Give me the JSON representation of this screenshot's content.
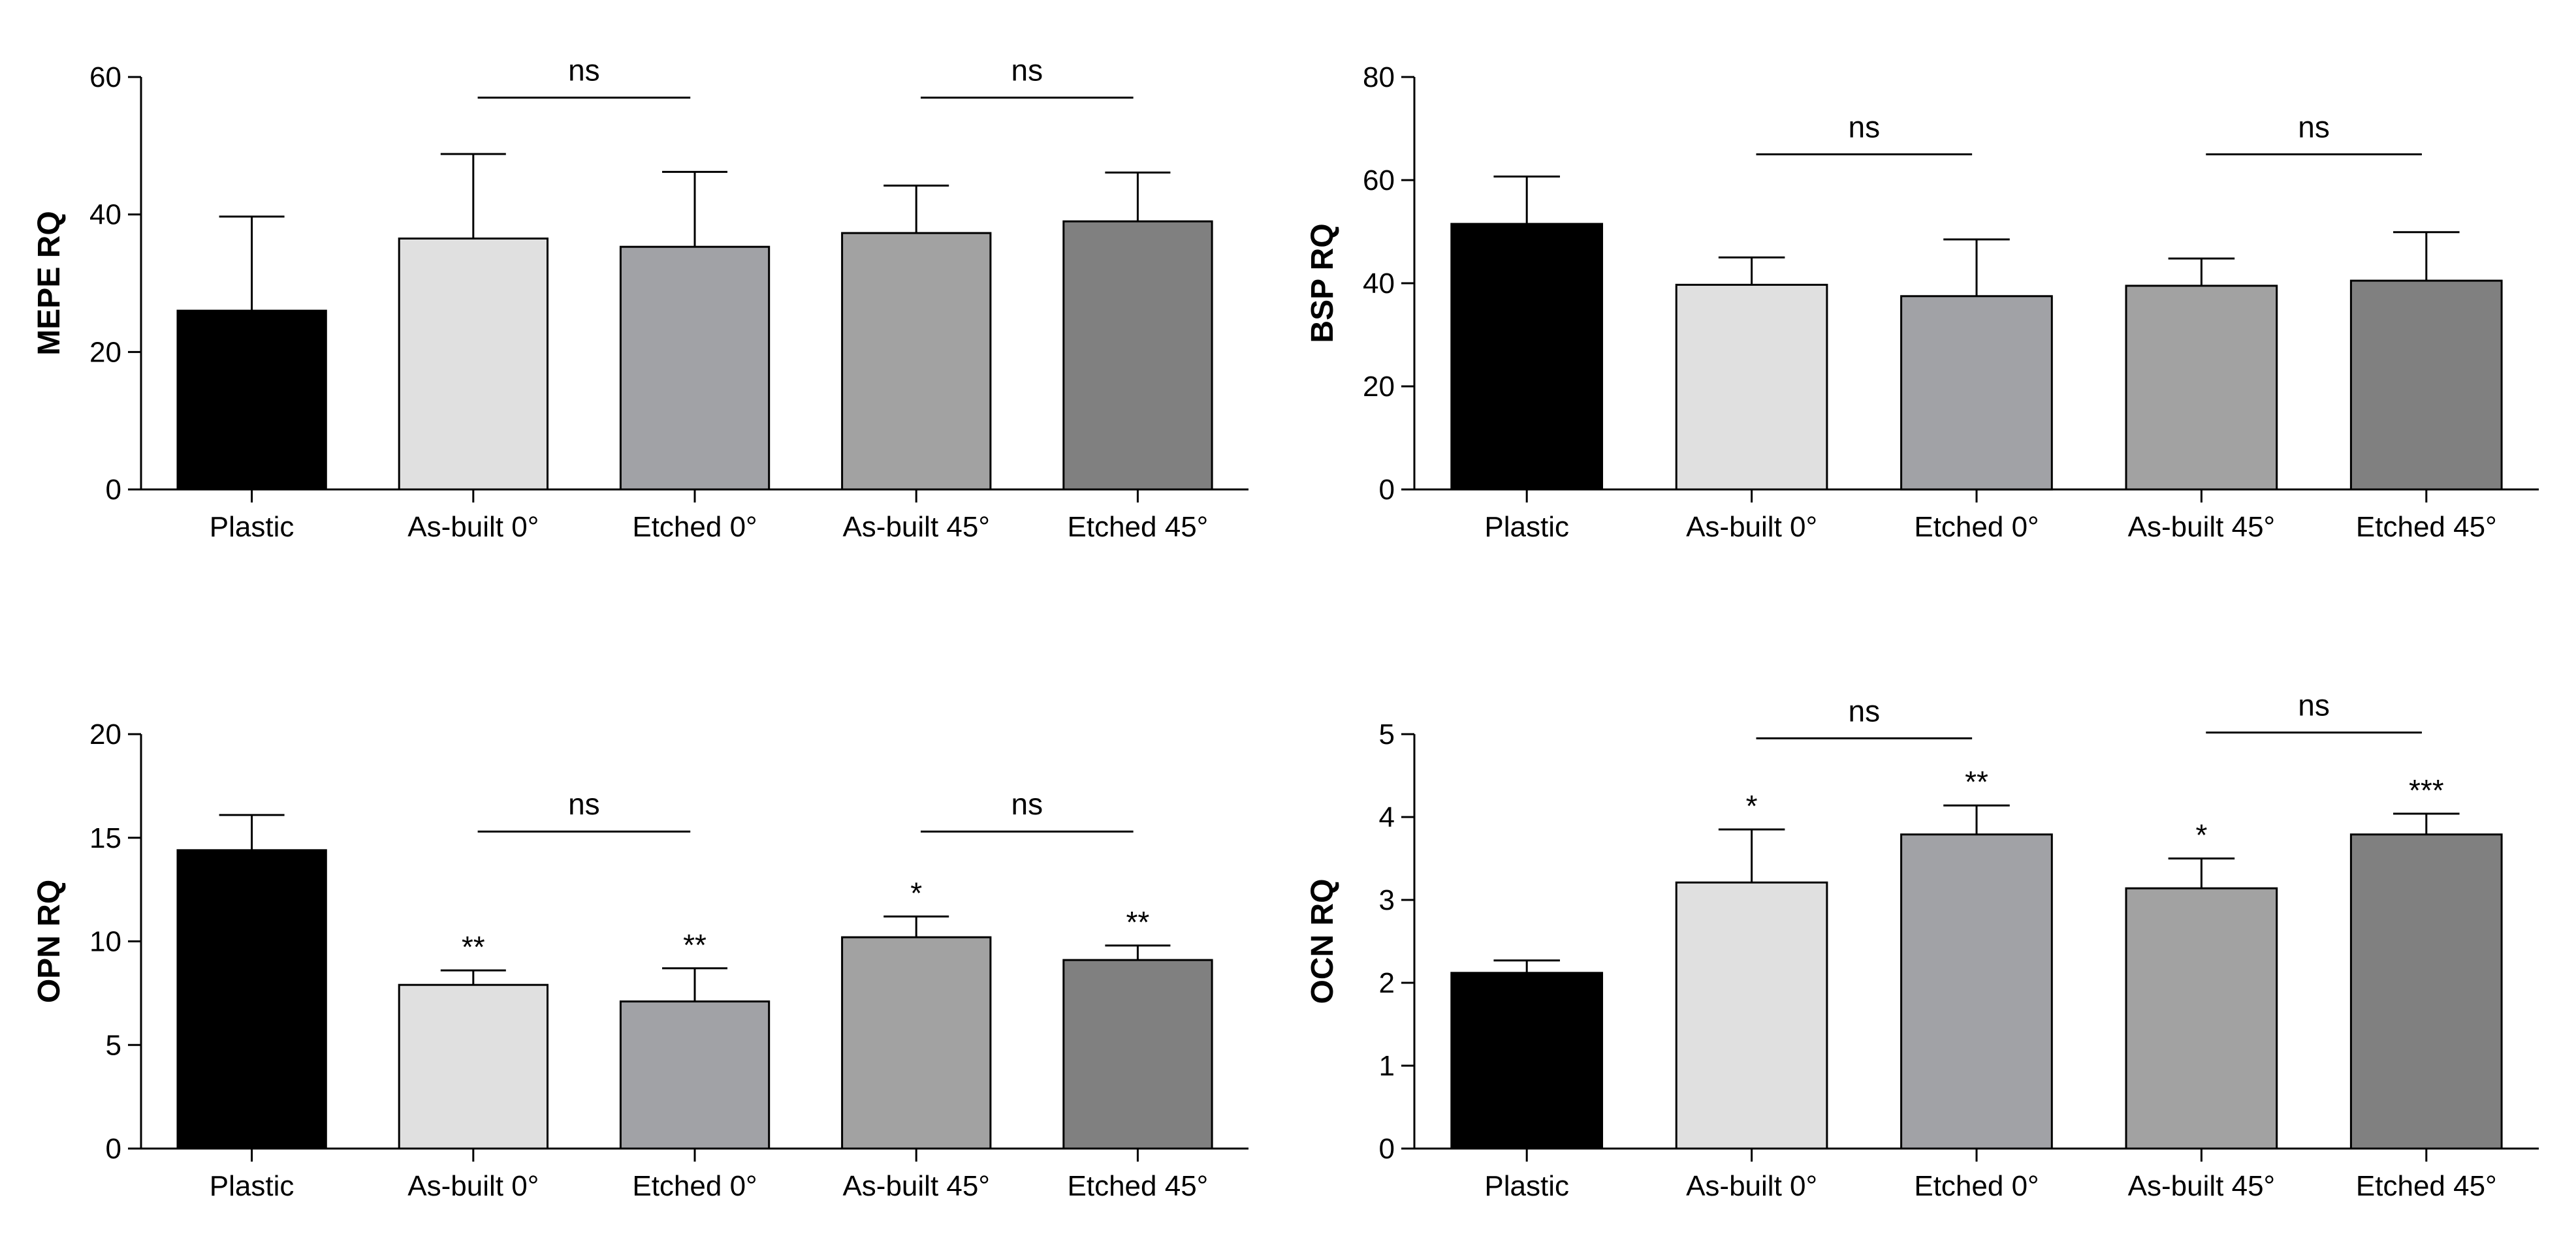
{
  "chart_data": [
    {
      "type": "bar",
      "id": "mepe",
      "ylabel": "MEPE RQ",
      "categories": [
        "Plastic",
        "As-built 0°",
        "Etched 0°",
        "As-built 45°",
        "Etched 45°"
      ],
      "values": [
        26,
        36.5,
        35.3,
        37.3,
        39
      ],
      "errors": [
        13.7,
        12.3,
        10.9,
        6.9,
        7.1
      ],
      "colors": [
        "#000000",
        "#e0e0e0",
        "#a1a2a6",
        "#a2a2a2",
        "#808080"
      ],
      "ylim": [
        0,
        60
      ],
      "yticks": [
        0,
        20,
        40,
        60
      ],
      "stars": [
        "",
        "",
        "",
        "",
        ""
      ],
      "brackets": [
        {
          "from": 1,
          "to": 2,
          "y": 57,
          "label": "ns"
        },
        {
          "from": 3,
          "to": 4,
          "y": 57,
          "label": "ns"
        }
      ]
    },
    {
      "type": "bar",
      "id": "bsp",
      "ylabel": "BSP RQ",
      "categories": [
        "Plastic",
        "As-built 0°",
        "Etched 0°",
        "As-built 45°",
        "Etched 45°"
      ],
      "values": [
        51.5,
        39.7,
        37.5,
        39.5,
        40.5
      ],
      "errors": [
        9.2,
        5.3,
        11.0,
        5.3,
        9.4
      ],
      "colors": [
        "#000000",
        "#e0e0e0",
        "#a1a2a6",
        "#a2a2a2",
        "#808080"
      ],
      "ylim": [
        0,
        80
      ],
      "yticks": [
        0,
        20,
        40,
        60,
        80
      ],
      "stars": [
        "",
        "",
        "",
        "",
        ""
      ],
      "brackets": [
        {
          "from": 1,
          "to": 2,
          "y": 65,
          "label": "ns"
        },
        {
          "from": 3,
          "to": 4,
          "y": 65,
          "label": "ns"
        }
      ]
    },
    {
      "type": "bar",
      "id": "opn",
      "ylabel": "OPN RQ",
      "categories": [
        "Plastic",
        "As-built 0°",
        "Etched 0°",
        "As-built 45°",
        "Etched 45°"
      ],
      "values": [
        14.4,
        7.9,
        7.1,
        10.2,
        9.1
      ],
      "errors": [
        1.7,
        0.7,
        1.6,
        1.0,
        0.7
      ],
      "colors": [
        "#000000",
        "#e0e0e0",
        "#a1a2a6",
        "#a2a2a2",
        "#808080"
      ],
      "ylim": [
        0,
        20
      ],
      "yticks": [
        0,
        5,
        10,
        15,
        20
      ],
      "stars": [
        "",
        "**",
        "**",
        "*",
        "**"
      ],
      "brackets": [
        {
          "from": 1,
          "to": 2,
          "y": 15.3,
          "label": "ns"
        },
        {
          "from": 3,
          "to": 4,
          "y": 15.3,
          "label": "ns"
        }
      ]
    },
    {
      "type": "bar",
      "id": "ocn",
      "ylabel": "OCN RQ",
      "categories": [
        "Plastic",
        "As-built 0°",
        "Etched 0°",
        "As-built 45°",
        "Etched 45°"
      ],
      "values": [
        2.12,
        3.21,
        3.79,
        3.14,
        3.79
      ],
      "errors": [
        0.15,
        0.64,
        0.35,
        0.36,
        0.25
      ],
      "colors": [
        "#000000",
        "#e0e0e0",
        "#a1a2a6",
        "#a2a2a2",
        "#808080"
      ],
      "ylim": [
        0,
        5
      ],
      "yticks": [
        0,
        1,
        2,
        3,
        4,
        5
      ],
      "stars": [
        "",
        "*",
        "**",
        "*",
        "***"
      ],
      "brackets": [
        {
          "from": 1,
          "to": 2,
          "y": 4.95,
          "label": "ns"
        },
        {
          "from": 3,
          "to": 4,
          "y": 5.02,
          "label": "ns"
        }
      ]
    }
  ]
}
